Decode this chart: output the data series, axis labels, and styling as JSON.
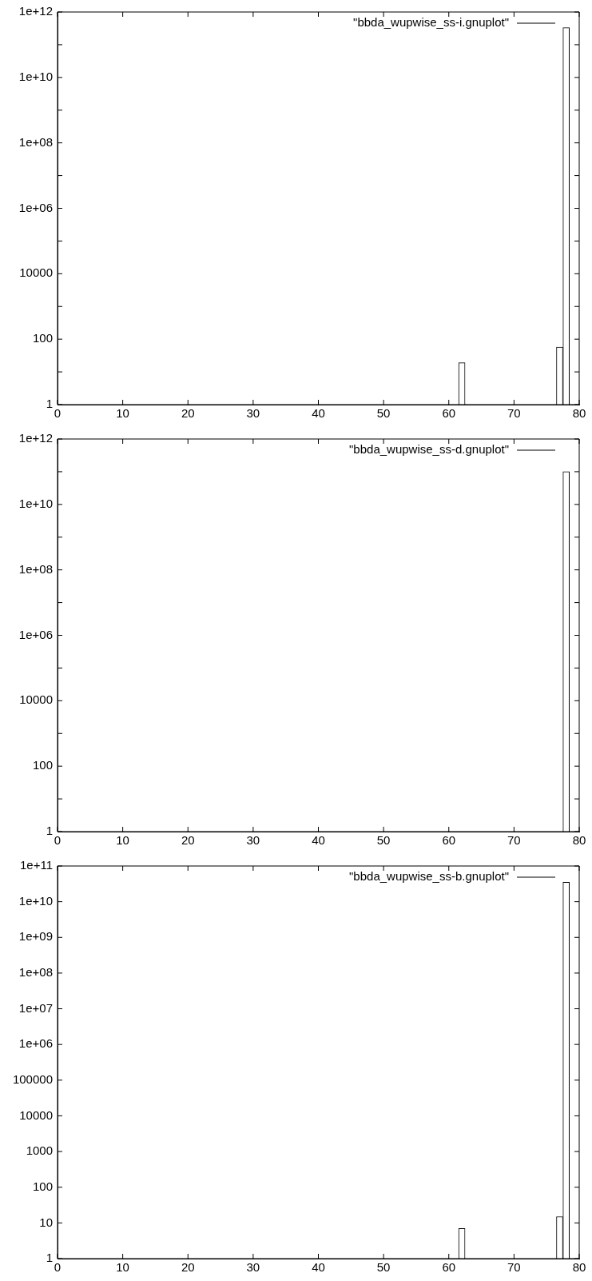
{
  "chart_data": [
    {
      "type": "bar",
      "x": [
        62,
        77,
        78
      ],
      "series": [
        {
          "name": "\"bbda_wupwise_ss-i.gnuplot\"",
          "color": "#000000",
          "values": [
            19,
            57,
            330000000000.0
          ]
        }
      ],
      "xlim": [
        0,
        80
      ],
      "xticks": [
        0,
        10,
        20,
        30,
        40,
        50,
        60,
        70,
        80
      ],
      "log": "y",
      "ylim": [
        1,
        1000000000000.0
      ],
      "yticks": [
        1,
        {
          "value": 10,
          "label": null
        },
        100,
        {
          "value": 1000,
          "label": null
        },
        10000,
        {
          "value": 100000,
          "label": null
        },
        {
          "value": 1000000.0,
          "label": "1e+06"
        },
        {
          "value": 10000000.0,
          "label": null
        },
        {
          "value": 100000000.0,
          "label": "1e+08"
        },
        {
          "value": 1000000000.0,
          "label": null
        },
        {
          "value": 10000000000.0,
          "label": "1e+10"
        },
        {
          "value": 100000000000.0,
          "label": null
        },
        {
          "value": 1000000000000.0,
          "label": "1e+12"
        }
      ],
      "legend": "top right"
    },
    {
      "type": "bar",
      "x": [
        78
      ],
      "series": [
        {
          "name": "\"bbda_wupwise_ss-d.gnuplot\"",
          "color": "#000000",
          "values": [
            100000000000.0
          ]
        }
      ],
      "xlim": [
        0,
        80
      ],
      "xticks": [
        0,
        10,
        20,
        30,
        40,
        50,
        60,
        70,
        80
      ],
      "log": "y",
      "ylim": [
        1,
        1000000000000.0
      ],
      "yticks": [
        1,
        {
          "value": 10,
          "label": null
        },
        100,
        {
          "value": 1000,
          "label": null
        },
        10000,
        {
          "value": 100000,
          "label": null
        },
        {
          "value": 1000000.0,
          "label": "1e+06"
        },
        {
          "value": 10000000.0,
          "label": null
        },
        {
          "value": 100000000.0,
          "label": "1e+08"
        },
        {
          "value": 1000000000.0,
          "label": null
        },
        {
          "value": 10000000000.0,
          "label": "1e+10"
        },
        {
          "value": 100000000000.0,
          "label": null
        },
        {
          "value": 1000000000000.0,
          "label": "1e+12"
        }
      ],
      "legend": "top right"
    },
    {
      "type": "bar",
      "x": [
        62,
        77,
        78
      ],
      "series": [
        {
          "name": "\"bbda_wupwise_ss-b.gnuplot\"",
          "color": "#000000",
          "values": [
            7,
            15,
            35000000000.0
          ]
        }
      ],
      "xlim": [
        0,
        80
      ],
      "xticks": [
        0,
        10,
        20,
        30,
        40,
        50,
        60,
        70,
        80
      ],
      "log": "y",
      "ylim": [
        1,
        100000000000.0
      ],
      "yticks": [
        1,
        10,
        100,
        1000,
        10000,
        100000,
        {
          "value": 1000000.0,
          "label": "1e+06"
        },
        {
          "value": 10000000.0,
          "label": "1e+07"
        },
        {
          "value": 100000000.0,
          "label": "1e+08"
        },
        {
          "value": 1000000000.0,
          "label": "1e+09"
        },
        {
          "value": 10000000000.0,
          "label": "1e+10"
        },
        {
          "value": 100000000000.0,
          "label": "1e+11"
        }
      ],
      "legend": "top right"
    }
  ]
}
